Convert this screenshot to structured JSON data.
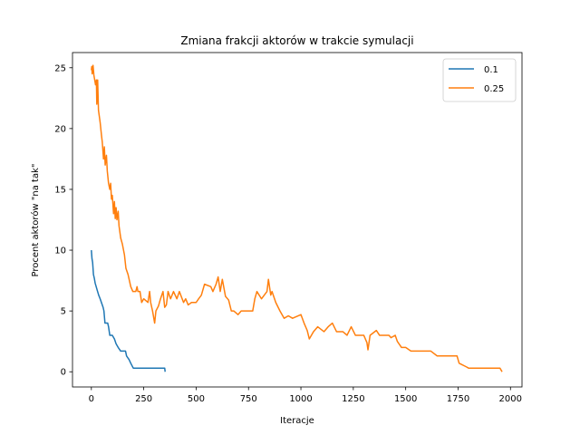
{
  "chart_data": {
    "type": "line",
    "title": "Zmiana frakcji aktorów w trakcie symulacji",
    "xlabel": "Iteracje",
    "ylabel": "Procent aktorów \"na tak\"",
    "xlim": [
      -90,
      2055
    ],
    "ylim": [
      -1.25,
      26.25
    ],
    "xticks": [
      0,
      250,
      500,
      750,
      1000,
      1250,
      1500,
      1750,
      2000
    ],
    "yticks": [
      0,
      5,
      10,
      15,
      20,
      25
    ],
    "grid": false,
    "legend_position": "top-right",
    "series": [
      {
        "name": "0.1",
        "color": "#1f77b4",
        "points": [
          [
            0,
            10.0
          ],
          [
            3,
            9.3
          ],
          [
            6,
            9.0
          ],
          [
            10,
            8.0
          ],
          [
            14,
            7.7
          ],
          [
            18,
            7.3
          ],
          [
            23,
            7.0
          ],
          [
            28,
            6.7
          ],
          [
            35,
            6.3
          ],
          [
            42,
            6.0
          ],
          [
            50,
            5.6
          ],
          [
            56,
            5.3
          ],
          [
            60,
            5.0
          ],
          [
            65,
            4.0
          ],
          [
            78,
            4.0
          ],
          [
            82,
            3.7
          ],
          [
            88,
            3.0
          ],
          [
            100,
            3.0
          ],
          [
            110,
            2.7
          ],
          [
            118,
            2.3
          ],
          [
            128,
            2.0
          ],
          [
            140,
            1.7
          ],
          [
            163,
            1.7
          ],
          [
            168,
            1.3
          ],
          [
            180,
            1.0
          ],
          [
            188,
            0.7
          ],
          [
            200,
            0.3
          ],
          [
            250,
            0.3
          ],
          [
            350,
            0.3
          ],
          [
            352,
            0.0
          ]
        ]
      },
      {
        "name": "0.25",
        "color": "#ff7f0e",
        "points": [
          [
            0,
            24.8
          ],
          [
            2,
            25.1
          ],
          [
            4,
            24.5
          ],
          [
            8,
            25.2
          ],
          [
            12,
            24.4
          ],
          [
            16,
            24.0
          ],
          [
            20,
            23.6
          ],
          [
            24,
            24.0
          ],
          [
            26,
            22.0
          ],
          [
            30,
            24.0
          ],
          [
            34,
            21.5
          ],
          [
            38,
            21.0
          ],
          [
            42,
            20.5
          ],
          [
            48,
            19.5
          ],
          [
            52,
            18.9
          ],
          [
            58,
            17.5
          ],
          [
            62,
            18.5
          ],
          [
            66,
            17.0
          ],
          [
            72,
            17.8
          ],
          [
            76,
            16.5
          ],
          [
            82,
            15.5
          ],
          [
            88,
            15.0
          ],
          [
            92,
            15.5
          ],
          [
            96,
            14.2
          ],
          [
            100,
            14.5
          ],
          [
            106,
            13.0
          ],
          [
            110,
            14.0
          ],
          [
            114,
            12.6
          ],
          [
            118,
            13.5
          ],
          [
            122,
            12.5
          ],
          [
            128,
            13.2
          ],
          [
            132,
            12.0
          ],
          [
            140,
            11.0
          ],
          [
            148,
            10.5
          ],
          [
            158,
            9.6
          ],
          [
            165,
            8.5
          ],
          [
            175,
            8.0
          ],
          [
            188,
            7.0
          ],
          [
            198,
            6.6
          ],
          [
            212,
            6.6
          ],
          [
            218,
            7.0
          ],
          [
            222,
            6.6
          ],
          [
            232,
            6.6
          ],
          [
            240,
            5.7
          ],
          [
            250,
            6.0
          ],
          [
            270,
            5.7
          ],
          [
            278,
            6.6
          ],
          [
            283,
            5.7
          ],
          [
            292,
            5.0
          ],
          [
            302,
            4.0
          ],
          [
            308,
            5.0
          ],
          [
            320,
            5.4
          ],
          [
            330,
            6.0
          ],
          [
            342,
            6.6
          ],
          [
            350,
            5.3
          ],
          [
            358,
            5.5
          ],
          [
            366,
            6.6
          ],
          [
            378,
            6.0
          ],
          [
            392,
            6.6
          ],
          [
            408,
            6.0
          ],
          [
            420,
            6.6
          ],
          [
            440,
            5.7
          ],
          [
            450,
            6.0
          ],
          [
            462,
            5.5
          ],
          [
            470,
            5.6
          ],
          [
            478,
            5.7
          ],
          [
            488,
            5.7
          ],
          [
            500,
            5.7
          ],
          [
            512,
            6.0
          ],
          [
            525,
            6.3
          ],
          [
            540,
            7.2
          ],
          [
            570,
            7.0
          ],
          [
            580,
            6.6
          ],
          [
            595,
            7.2
          ],
          [
            605,
            7.8
          ],
          [
            615,
            6.6
          ],
          [
            625,
            7.6
          ],
          [
            640,
            6.2
          ],
          [
            655,
            5.9
          ],
          [
            668,
            5.0
          ],
          [
            680,
            5.0
          ],
          [
            700,
            4.7
          ],
          [
            715,
            5.0
          ],
          [
            740,
            5.0
          ],
          [
            770,
            5.0
          ],
          [
            780,
            6.0
          ],
          [
            790,
            6.6
          ],
          [
            812,
            6.0
          ],
          [
            825,
            6.3
          ],
          [
            838,
            6.6
          ],
          [
            845,
            7.6
          ],
          [
            856,
            6.3
          ],
          [
            862,
            6.6
          ],
          [
            880,
            5.7
          ],
          [
            900,
            5.0
          ],
          [
            920,
            4.4
          ],
          [
            940,
            4.6
          ],
          [
            960,
            4.4
          ],
          [
            1000,
            4.7
          ],
          [
            1015,
            4.0
          ],
          [
            1030,
            3.4
          ],
          [
            1040,
            2.7
          ],
          [
            1060,
            3.3
          ],
          [
            1080,
            3.7
          ],
          [
            1110,
            3.3
          ],
          [
            1130,
            3.7
          ],
          [
            1150,
            4.0
          ],
          [
            1170,
            3.3
          ],
          [
            1200,
            3.3
          ],
          [
            1220,
            3.0
          ],
          [
            1240,
            3.7
          ],
          [
            1260,
            3.0
          ],
          [
            1300,
            3.0
          ],
          [
            1315,
            2.4
          ],
          [
            1320,
            1.8
          ],
          [
            1330,
            3.0
          ],
          [
            1360,
            3.4
          ],
          [
            1375,
            3.0
          ],
          [
            1400,
            3.0
          ],
          [
            1420,
            3.0
          ],
          [
            1430,
            2.8
          ],
          [
            1450,
            3.0
          ],
          [
            1460,
            2.5
          ],
          [
            1480,
            2.0
          ],
          [
            1500,
            2.0
          ],
          [
            1525,
            1.7
          ],
          [
            1545,
            1.7
          ],
          [
            1620,
            1.7
          ],
          [
            1650,
            1.3
          ],
          [
            1700,
            1.3
          ],
          [
            1745,
            1.3
          ],
          [
            1755,
            0.7
          ],
          [
            1790,
            0.4
          ],
          [
            1800,
            0.3
          ],
          [
            1850,
            0.3
          ],
          [
            1950,
            0.3
          ],
          [
            1960,
            0.0
          ]
        ]
      }
    ]
  }
}
